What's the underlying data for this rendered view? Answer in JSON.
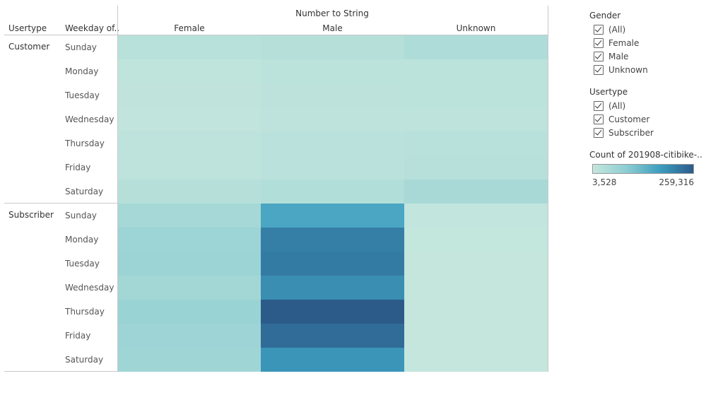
{
  "chart_data": {
    "type": "heatmap",
    "column_group_title": "Number to String",
    "row_headers": [
      "Usertype",
      "Weekday of.."
    ],
    "columns": [
      "Female",
      "Male",
      "Unknown"
    ],
    "groups": [
      {
        "name": "Customer",
        "rows": [
          {
            "day": "Sunday",
            "values": [
              22000,
              26000,
              38000
            ]
          },
          {
            "day": "Monday",
            "values": [
              12000,
              17000,
              18000
            ]
          },
          {
            "day": "Tuesday",
            "values": [
              10000,
              16000,
              17000
            ]
          },
          {
            "day": "Wednesday",
            "values": [
              9000,
              13000,
              14000
            ]
          },
          {
            "day": "Thursday",
            "values": [
              13000,
              19000,
              22000
            ]
          },
          {
            "day": "Friday",
            "values": [
              14000,
              20000,
              24000
            ]
          },
          {
            "day": "Saturday",
            "values": [
              26000,
              32000,
              48000
            ]
          }
        ]
      },
      {
        "name": "Subscriber",
        "rows": [
          {
            "day": "Sunday",
            "values": [
              52000,
              160000,
              6000
            ]
          },
          {
            "day": "Monday",
            "values": [
              65000,
              215000,
              4500
            ]
          },
          {
            "day": "Tuesday",
            "values": [
              66000,
              218000,
              4000
            ]
          },
          {
            "day": "Wednesday",
            "values": [
              55000,
              195000,
              4200
            ]
          },
          {
            "day": "Thursday",
            "values": [
              70000,
              259316,
              4100
            ]
          },
          {
            "day": "Friday",
            "values": [
              64000,
              238000,
              4300
            ]
          },
          {
            "day": "Saturday",
            "values": [
              60000,
              185000,
              3528
            ]
          }
        ]
      }
    ],
    "min": 3528,
    "max": 259316
  },
  "filters": {
    "gender": {
      "title": "Gender",
      "items": [
        "(All)",
        "Female",
        "Male",
        "Unknown"
      ]
    },
    "usertype": {
      "title": "Usertype",
      "items": [
        "(All)",
        "Customer",
        "Subscriber"
      ]
    }
  },
  "legend": {
    "title": "Count of 201908-citibike-..",
    "min_label": "3,528",
    "max_label": "259,316",
    "colors": [
      "#c4e6dd",
      "#8ecdd2",
      "#3d9ebf",
      "#2c5b8a"
    ]
  }
}
